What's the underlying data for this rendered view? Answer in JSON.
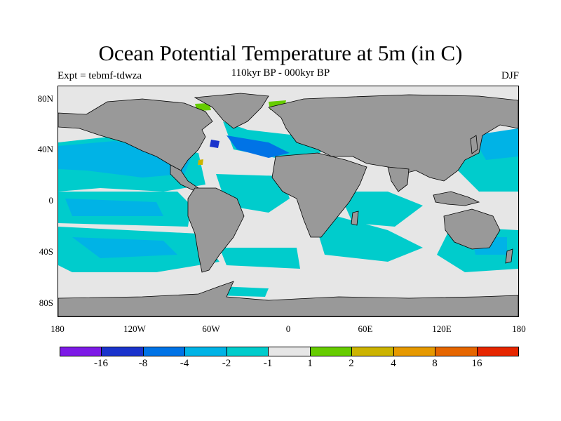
{
  "title": "Ocean Potential Temperature at 5m (in C)",
  "experiment": "Expt = tebmf-tdwza",
  "period": "110kyr BP - 000kyr BP",
  "season": "DJF",
  "colors": {
    "land": "#999999",
    "ocean_neutral": "#e6e6e6",
    "cool_1": "#00cccc",
    "cool_2": "#00b3e6",
    "cool_4": "#0073e6",
    "cool_8": "#1a33cc",
    "cool_16": "#7d1ae6"
  },
  "y_axis": [
    "80N",
    "40N",
    "0",
    "40S",
    "80S"
  ],
  "x_axis": [
    "180",
    "120W",
    "60W",
    "0",
    "60E",
    "120E",
    "180"
  ],
  "legend": {
    "swatches": [
      "#7d1ae6",
      "#1a33cc",
      "#0073e6",
      "#00b3e6",
      "#00cccc",
      "#e6e6e6",
      "#66cc00",
      "#ccb300",
      "#e69900",
      "#e66600",
      "#e62600"
    ],
    "labels": [
      "-16",
      "-8",
      "-4",
      "-2",
      "-1",
      "1",
      "2",
      "4",
      "8",
      "16"
    ]
  }
}
